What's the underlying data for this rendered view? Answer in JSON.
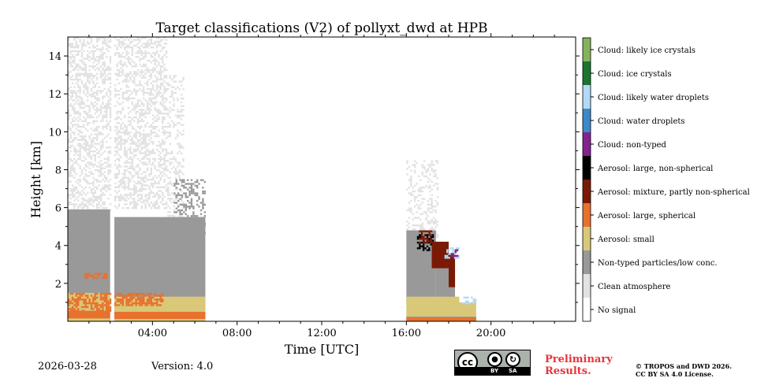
{
  "chart_data": {
    "type": "heatmap",
    "title": "Target classifications (V2) of pollyxt_dwd at HPB",
    "xlabel": "Time [UTC]",
    "ylabel": "Height [km]",
    "xlim": [
      0,
      24
    ],
    "ylim": [
      0,
      15
    ],
    "xticks": [
      {
        "value": 4,
        "label": "04:00"
      },
      {
        "value": 8,
        "label": "08:00"
      },
      {
        "value": 12,
        "label": "12:00"
      },
      {
        "value": 16,
        "label": "16:00"
      },
      {
        "value": 20,
        "label": "20:00"
      }
    ],
    "yticks": [
      {
        "value": 2,
        "label": "2"
      },
      {
        "value": 4,
        "label": "4"
      },
      {
        "value": 6,
        "label": "6"
      },
      {
        "value": 8,
        "label": "8"
      },
      {
        "value": 10,
        "label": "10"
      },
      {
        "value": 12,
        "label": "12"
      },
      {
        "value": 14,
        "label": "14"
      }
    ],
    "classes": [
      {
        "label": "No signal",
        "color": "#ffffff"
      },
      {
        "label": "Clean atmosphere",
        "color": "#e2e2e2"
      },
      {
        "label": "Non-typed particles/low conc.",
        "color": "#999999"
      },
      {
        "label": "Aerosol: small",
        "color": "#d9c878"
      },
      {
        "label": "Aerosol: large, spherical",
        "color": "#e8712e"
      },
      {
        "label": "Aerosol: mixture, partly non-spherical",
        "color": "#7a1a06"
      },
      {
        "label": "Aerosol: large, non-spherical",
        "color": "#000000"
      },
      {
        "label": "Cloud: non-typed",
        "color": "#842290"
      },
      {
        "label": "Cloud: water droplets",
        "color": "#3d88c8"
      },
      {
        "label": "Cloud: likely water droplets",
        "color": "#b1daf6"
      },
      {
        "label": "Cloud: ice crystals",
        "color": "#1b7431"
      },
      {
        "label": "Cloud: likely ice crystals",
        "color": "#85b35c"
      }
    ],
    "regions": [
      {
        "class": 1,
        "x": [
          0,
          2.0
        ],
        "y": [
          5.9,
          15.0
        ],
        "texture": 0.45
      },
      {
        "class": 2,
        "x": [
          0,
          2.0
        ],
        "y": [
          0.0,
          5.9
        ]
      },
      {
        "class": 3,
        "x": [
          0,
          2.0
        ],
        "y": [
          0.55,
          1.5
        ]
      },
      {
        "class": 4,
        "x": [
          0,
          2.0
        ],
        "y": [
          0.6,
          1.5
        ],
        "texture": 0.6
      },
      {
        "class": 4,
        "x": [
          0,
          2.0
        ],
        "y": [
          0.0,
          0.55
        ]
      },
      {
        "class": 3,
        "x": [
          0,
          2.0
        ],
        "y": [
          0.0,
          0.15
        ]
      },
      {
        "class": 4,
        "x": [
          0.8,
          1.8
        ],
        "y": [
          2.35,
          2.55
        ],
        "texture": 0.7
      },
      {
        "class": 1,
        "x": [
          2.2,
          4.7
        ],
        "y": [
          6.0,
          15.0
        ],
        "texture": 0.45
      },
      {
        "class": 1,
        "x": [
          4.7,
          5.5
        ],
        "y": [
          5.0,
          13.0
        ],
        "texture": 0.3
      },
      {
        "class": 2,
        "x": [
          2.2,
          6.5
        ],
        "y": [
          0.0,
          5.5
        ]
      },
      {
        "class": 2,
        "x": [
          5.0,
          6.5
        ],
        "y": [
          4.5,
          7.5
        ],
        "texture": 0.35
      },
      {
        "class": 3,
        "x": [
          2.2,
          6.5
        ],
        "y": [
          0.5,
          1.3
        ]
      },
      {
        "class": 4,
        "x": [
          2.2,
          4.5
        ],
        "y": [
          0.9,
          1.5
        ],
        "texture": 0.7
      },
      {
        "class": 4,
        "x": [
          2.2,
          6.5
        ],
        "y": [
          0.0,
          0.5
        ]
      },
      {
        "class": 3,
        "x": [
          2.2,
          6.5
        ],
        "y": [
          0.0,
          0.12
        ]
      },
      {
        "class": 1,
        "x": [
          16.0,
          17.5
        ],
        "y": [
          4.5,
          8.5
        ],
        "texture": 0.3
      },
      {
        "class": 2,
        "x": [
          16.0,
          17.4
        ],
        "y": [
          0.9,
          4.8
        ]
      },
      {
        "class": 2,
        "x": [
          17.4,
          18.3
        ],
        "y": [
          1.2,
          3.0
        ]
      },
      {
        "class": 5,
        "x": [
          17.2,
          18.0
        ],
        "y": [
          2.8,
          4.2
        ]
      },
      {
        "class": 6,
        "x": [
          16.5,
          17.3
        ],
        "y": [
          3.8,
          4.6
        ],
        "texture": 0.6
      },
      {
        "class": 5,
        "x": [
          16.6,
          17.2
        ],
        "y": [
          4.2,
          4.8
        ],
        "texture": 0.6
      },
      {
        "class": 5,
        "x": [
          18.0,
          18.3
        ],
        "y": [
          1.8,
          3.6
        ]
      },
      {
        "class": 9,
        "x": [
          17.8,
          18.5
        ],
        "y": [
          3.4,
          3.9
        ],
        "texture": 0.4
      },
      {
        "class": 7,
        "x": [
          18.1,
          18.4
        ],
        "y": [
          3.5,
          3.8
        ],
        "texture": 0.5
      },
      {
        "class": 3,
        "x": [
          16.0,
          18.5
        ],
        "y": [
          0.2,
          1.3
        ]
      },
      {
        "class": 2,
        "x": [
          16.0,
          19.3
        ],
        "y": [
          0.0,
          0.25
        ]
      },
      {
        "class": 4,
        "x": [
          16.0,
          19.3
        ],
        "y": [
          0.0,
          0.2
        ]
      },
      {
        "class": 3,
        "x": [
          18.2,
          19.3
        ],
        "y": [
          0.25,
          1.0
        ]
      },
      {
        "class": 9,
        "x": [
          18.6,
          19.3
        ],
        "y": [
          1.0,
          1.3
        ],
        "texture": 0.5
      }
    ]
  },
  "footer": {
    "date": "2026-03-28",
    "version": "Version: 4.0",
    "prelim_line1": "Preliminary",
    "prelim_line2": "Results.",
    "copyright_line1": "© TROPOS and DWD 2026.",
    "copyright_line2": "CC BY SA 4.0 License.",
    "license_badge_by": "BY",
    "license_badge_sa": "SA",
    "license_badge_cc": "cc"
  }
}
